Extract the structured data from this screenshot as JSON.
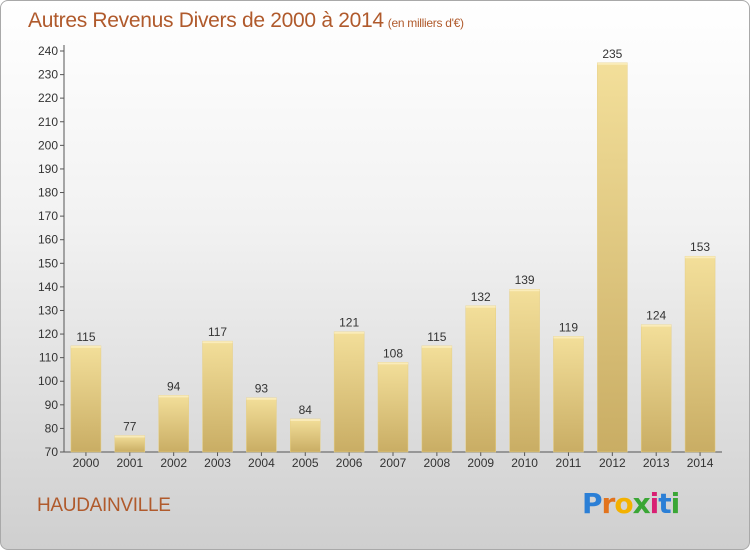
{
  "title": "Autres Revenus Divers de 2000 à 2014",
  "unit": "(en milliers d'€)",
  "commune": "HAUDAINVILLE",
  "brand": {
    "letters": [
      "P",
      "r",
      "o",
      "x",
      "i",
      "t",
      "i"
    ],
    "colors": [
      "#2b7fd6",
      "#e2731d",
      "#f3b100",
      "#3aa635",
      "#d81f73",
      "#2b7fd6",
      "#3aa635"
    ]
  },
  "colors": {
    "bar_top": "#f3df9a",
    "bar_bottom": "#c9ad64",
    "title": "#b05a2c"
  },
  "chart_data": {
    "type": "bar",
    "title": "Autres Revenus Divers de 2000 à 2014",
    "subtitle": "(en milliers d'€)",
    "categories": [
      "2000",
      "2001",
      "2002",
      "2003",
      "2004",
      "2005",
      "2006",
      "2007",
      "2008",
      "2009",
      "2010",
      "2011",
      "2012",
      "2013",
      "2014"
    ],
    "values": [
      115,
      77,
      94,
      117,
      93,
      84,
      121,
      108,
      115,
      132,
      139,
      119,
      235,
      124,
      153
    ],
    "ylim": [
      70,
      240
    ],
    "yticks": [
      70,
      80,
      90,
      100,
      110,
      120,
      130,
      140,
      150,
      160,
      170,
      180,
      190,
      200,
      210,
      220,
      230,
      240
    ],
    "grid": false
  }
}
